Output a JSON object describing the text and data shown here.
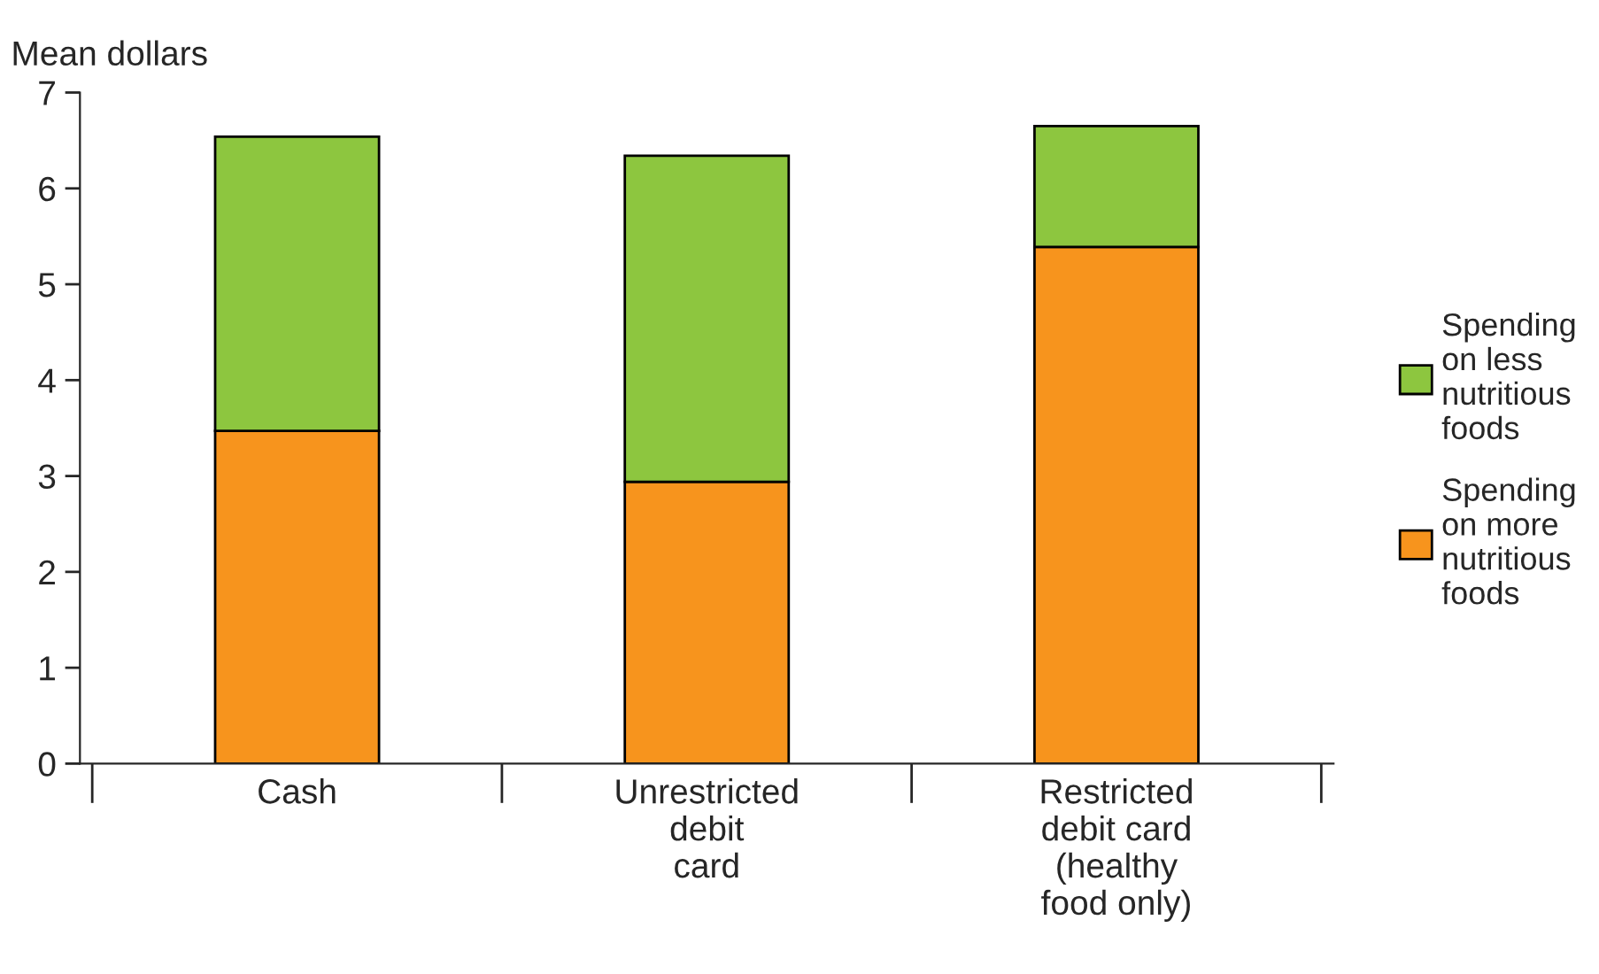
{
  "chart_data": {
    "type": "bar",
    "stacked": true,
    "ylabel": "Mean dollars",
    "categories": [
      "Cash",
      "Unrestricted\ndebit\ncard",
      "Restricted\ndebit card\n(healthy\nfood only)"
    ],
    "series": [
      {
        "name": "Spending\non more\nnutritious\nfoods",
        "color": "#f7941d",
        "values": [
          3.47,
          2.94,
          5.39
        ]
      },
      {
        "name": "Spending\non less\nnutritious\nfoods",
        "color": "#8dc63f",
        "values": [
          3.07,
          3.4,
          1.26
        ]
      }
    ],
    "ylim": [
      0,
      7
    ],
    "yticks": [
      0,
      1,
      2,
      3,
      4,
      5,
      6,
      7
    ],
    "grid": false,
    "legend": "right"
  }
}
